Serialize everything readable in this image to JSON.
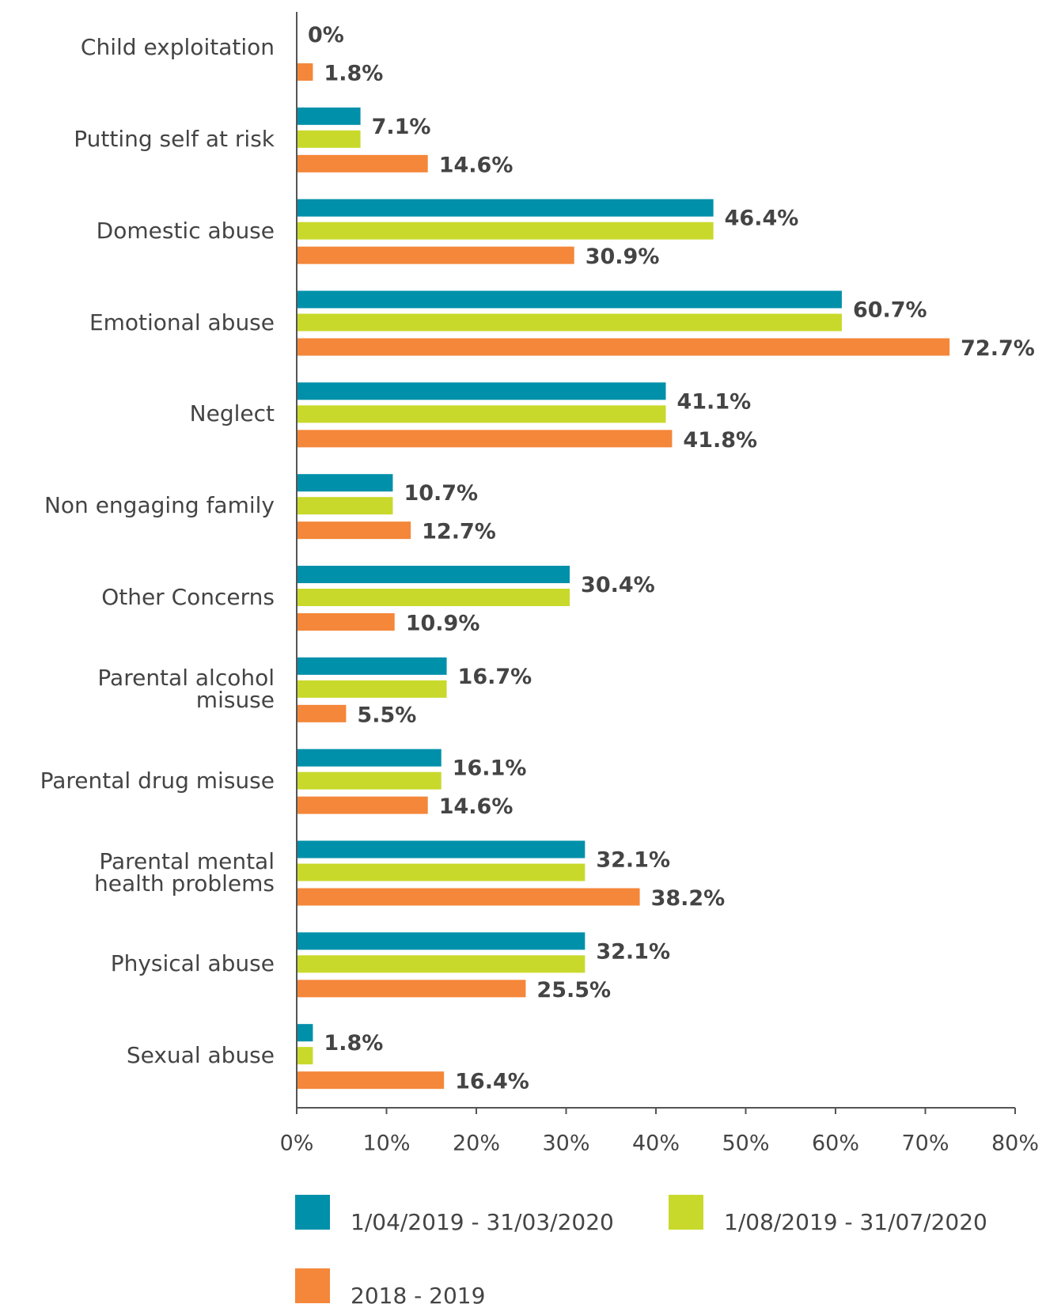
{
  "chart_data": {
    "type": "bar",
    "orientation": "horizontal",
    "categories": [
      "Child exploitation",
      "Putting self at risk",
      "Domestic abuse",
      "Emotional abuse",
      "Neglect",
      "Non engaging family",
      "Other Concerns",
      "Parental alcohol\nmisuse",
      "Parental drug misuse",
      "Parental mental\nhealth problems",
      "Physical abuse",
      "Sexual abuse"
    ],
    "series": [
      {
        "name": "1/04/2019 - 31/03/2020",
        "color": "#0090aa",
        "values": [
          0,
          7.1,
          46.4,
          60.7,
          41.1,
          10.7,
          30.4,
          16.7,
          16.1,
          32.1,
          32.1,
          1.8
        ]
      },
      {
        "name": "1/08/2019 - 31/07/2020",
        "color": "#c8d92b",
        "values": [
          0,
          7.1,
          46.4,
          60.7,
          41.1,
          10.7,
          30.4,
          16.7,
          16.1,
          32.1,
          32.1,
          1.8
        ],
        "value_labels": [
          "0%",
          "7.1%",
          "46.4%",
          "60.7%",
          "41.1%",
          "10.7%",
          "30.4%",
          "16.7%",
          "16.1%",
          "32.1%",
          "32.1%",
          "1.8%"
        ]
      },
      {
        "name": "2018 - 2019",
        "color": "#f4873a",
        "values": [
          1.8,
          14.6,
          30.9,
          72.7,
          41.8,
          12.7,
          10.9,
          5.5,
          14.6,
          38.2,
          25.5,
          16.4
        ],
        "value_labels": [
          "1.8%",
          "14.6%",
          "30.9%",
          "72.7%",
          "41.8%",
          "12.7%",
          "10.9%",
          "5.5%",
          "14.6%",
          "38.2%",
          "25.5%",
          "16.4%"
        ]
      }
    ],
    "xlim": [
      0,
      80
    ],
    "xticks": [
      {
        "value": 0,
        "label": "0%"
      },
      {
        "value": 10,
        "label": "10%"
      },
      {
        "value": 20,
        "label": "20%"
      },
      {
        "value": 30,
        "label": "30%"
      },
      {
        "value": 40,
        "label": "40%"
      },
      {
        "value": 50,
        "label": "50%"
      },
      {
        "value": 60,
        "label": "60%"
      },
      {
        "value": 70,
        "label": "70%"
      },
      {
        "value": 80,
        "label": "80%"
      }
    ],
    "legend": "bottom"
  }
}
